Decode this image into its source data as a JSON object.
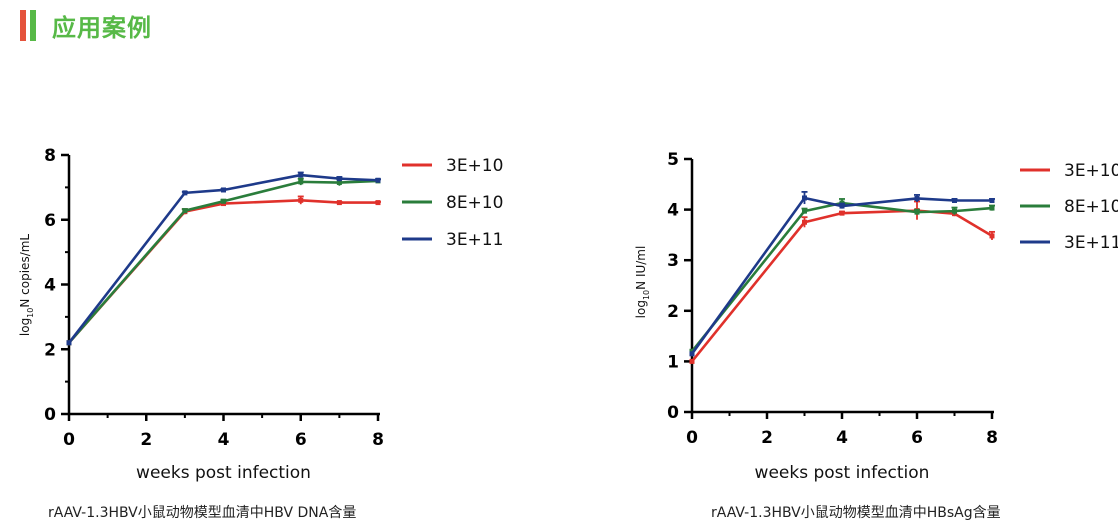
{
  "header": {
    "title": "应用案例",
    "accent_colors": [
      "#e5533c",
      "#57b947"
    ]
  },
  "chart_data": [
    {
      "type": "line",
      "title": "",
      "xlabel": "weeks post infection",
      "ylabel_prefix": "log",
      "ylabel_sub": "10",
      "ylabel_suffix": "N copies/mL",
      "xlim": [
        0,
        8
      ],
      "ylim": [
        0,
        8
      ],
      "xticks": [
        0,
        2,
        4,
        6,
        8
      ],
      "yticks": [
        0,
        2,
        4,
        6,
        8
      ],
      "xminor": [
        1,
        3,
        5,
        7
      ],
      "yminor": [
        1,
        3,
        5,
        7
      ],
      "legend_position": "right",
      "series": [
        {
          "name": "3E+10",
          "color": "#e0312b",
          "x": [
            0,
            3,
            4,
            6,
            7,
            8
          ],
          "y": [
            2.2,
            6.25,
            6.5,
            6.6,
            6.53,
            6.53
          ],
          "err": [
            0,
            0.08,
            0.05,
            0.12,
            0.02,
            0.02
          ]
        },
        {
          "name": "8E+10",
          "color": "#2a7d3b",
          "x": [
            0,
            3,
            4,
            6,
            7,
            8
          ],
          "y": [
            2.2,
            6.28,
            6.57,
            7.17,
            7.15,
            7.2
          ],
          "err": [
            0,
            0.05,
            0.05,
            0.1,
            0.1,
            0.05
          ]
        },
        {
          "name": "3E+11",
          "color": "#1e3a8a",
          "x": [
            0,
            3,
            4,
            6,
            7,
            8
          ],
          "y": [
            2.2,
            6.83,
            6.92,
            7.38,
            7.27,
            7.22
          ],
          "err": [
            0,
            0.03,
            0.03,
            0.08,
            0.05,
            0.03
          ]
        }
      ],
      "caption": "rAAV-1.3HBV小鼠动物模型血清中HBV DNA含量"
    },
    {
      "type": "line",
      "title": "",
      "xlabel": "weeks post infection",
      "ylabel_prefix": "log",
      "ylabel_sub": "10",
      "ylabel_suffix": "N IU/ml",
      "xlim": [
        0,
        8
      ],
      "ylim": [
        0,
        5
      ],
      "xticks": [
        0,
        2,
        4,
        6,
        8
      ],
      "yticks": [
        0,
        1,
        2,
        3,
        4,
        5
      ],
      "xminor": [
        1,
        3,
        5,
        7
      ],
      "yminor": [],
      "legend_position": "right",
      "series": [
        {
          "name": "3E+10",
          "color": "#e0312b",
          "x": [
            0,
            3,
            4,
            6,
            7,
            8
          ],
          "y": [
            1.0,
            3.75,
            3.93,
            3.98,
            3.92,
            3.48
          ],
          "err": [
            0,
            0.1,
            0.03,
            0.18,
            0.05,
            0.08
          ]
        },
        {
          "name": "8E+10",
          "color": "#2a7d3b",
          "x": [
            0,
            3,
            4,
            6,
            7,
            8
          ],
          "y": [
            1.2,
            3.97,
            4.13,
            3.95,
            3.97,
            4.03
          ],
          "err": [
            0,
            0.05,
            0.08,
            0.05,
            0.07,
            0.05
          ]
        },
        {
          "name": "3E+11",
          "color": "#1e3a8a",
          "x": [
            0,
            3,
            4,
            6,
            7,
            8
          ],
          "y": [
            1.15,
            4.23,
            4.07,
            4.22,
            4.18,
            4.18
          ],
          "err": [
            0,
            0.12,
            0.05,
            0.07,
            0.03,
            0.03
          ]
        }
      ],
      "caption": "rAAV-1.3HBV小鼠动物模型血清中HBsAg含量"
    }
  ]
}
